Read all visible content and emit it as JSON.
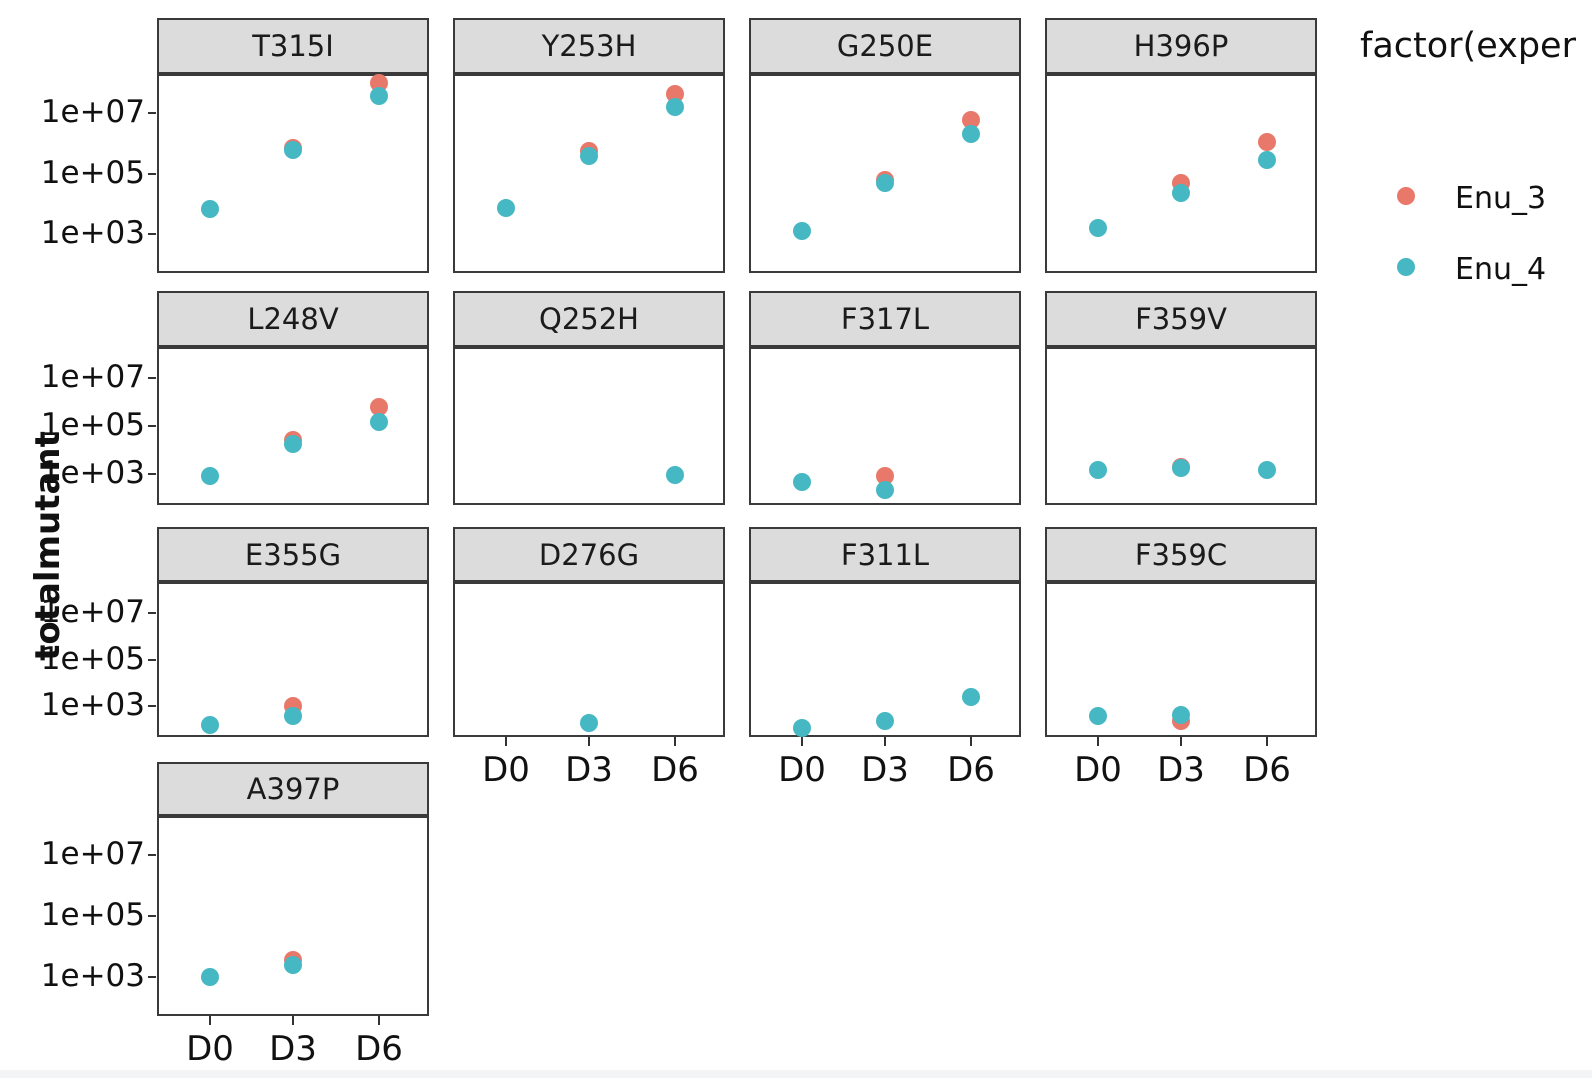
{
  "chart_data": {
    "type": "scatter",
    "x_categories": [
      "D0",
      "D3",
      "D6"
    ],
    "y_ticks": [
      {
        "value": 1000,
        "label": "1e+03"
      },
      {
        "value": 100000,
        "label": "1e+05"
      },
      {
        "value": 10000000,
        "label": "1e+07"
      }
    ],
    "y_scale": "log10",
    "y_domain_log10": [
      1.7,
      8.3
    ],
    "ylabel": "totalmutant",
    "grid": "off",
    "legend": {
      "title": "factor(exper",
      "position": "right",
      "items": [
        {
          "label": "Enu_3",
          "color": "#e87869"
        },
        {
          "label": "Enu_4",
          "color": "#46b8c3"
        }
      ]
    },
    "series_colors": {
      "Enu_3": "#e87869",
      "Enu_4": "#46b8c3"
    },
    "facets": [
      {
        "title": "T315I",
        "row": 1,
        "col": 1,
        "points": [
          {
            "x": "D3",
            "series": "Enu_3",
            "y": 710000
          },
          {
            "x": "D6",
            "series": "Enu_3",
            "y": 100000000
          },
          {
            "x": "D0",
            "series": "Enu_4",
            "y": 6800
          },
          {
            "x": "D3",
            "series": "Enu_4",
            "y": 590000
          },
          {
            "x": "D6",
            "series": "Enu_4",
            "y": 37000000
          }
        ]
      },
      {
        "title": "Y253H",
        "row": 1,
        "col": 2,
        "points": [
          {
            "x": "D3",
            "series": "Enu_3",
            "y": 540000
          },
          {
            "x": "D6",
            "series": "Enu_3",
            "y": 43000000
          },
          {
            "x": "D0",
            "series": "Enu_4",
            "y": 7400
          },
          {
            "x": "D3",
            "series": "Enu_4",
            "y": 370000
          },
          {
            "x": "D6",
            "series": "Enu_4",
            "y": 16000000
          }
        ]
      },
      {
        "title": "G250E",
        "row": 1,
        "col": 3,
        "points": [
          {
            "x": "D3",
            "series": "Enu_3",
            "y": 63000
          },
          {
            "x": "D6",
            "series": "Enu_3",
            "y": 5900000
          },
          {
            "x": "D0",
            "series": "Enu_4",
            "y": 1200
          },
          {
            "x": "D3",
            "series": "Enu_4",
            "y": 50000
          },
          {
            "x": "D6",
            "series": "Enu_4",
            "y": 2000000
          }
        ]
      },
      {
        "title": "H396P",
        "row": 1,
        "col": 4,
        "points": [
          {
            "x": "D3",
            "series": "Enu_3",
            "y": 47000
          },
          {
            "x": "D6",
            "series": "Enu_3",
            "y": 1100000
          },
          {
            "x": "D0",
            "series": "Enu_4",
            "y": 1600
          },
          {
            "x": "D3",
            "series": "Enu_4",
            "y": 23000
          },
          {
            "x": "D6",
            "series": "Enu_4",
            "y": 270000
          }
        ]
      },
      {
        "title": "L248V",
        "row": 2,
        "col": 1,
        "points": [
          {
            "x": "D3",
            "series": "Enu_3",
            "y": 25000
          },
          {
            "x": "D6",
            "series": "Enu_3",
            "y": 630000
          },
          {
            "x": "D0",
            "series": "Enu_4",
            "y": 850
          },
          {
            "x": "D3",
            "series": "Enu_4",
            "y": 17000
          },
          {
            "x": "D6",
            "series": "Enu_4",
            "y": 150000
          }
        ]
      },
      {
        "title": "Q252H",
        "row": 2,
        "col": 2,
        "points": [
          {
            "x": "D6",
            "series": "Enu_4",
            "y": 910
          }
        ]
      },
      {
        "title": "F317L",
        "row": 2,
        "col": 3,
        "points": [
          {
            "x": "D3",
            "series": "Enu_3",
            "y": 830
          },
          {
            "x": "D0",
            "series": "Enu_4",
            "y": 470
          },
          {
            "x": "D3",
            "series": "Enu_4",
            "y": 210
          }
        ]
      },
      {
        "title": "F359V",
        "row": 2,
        "col": 4,
        "points": [
          {
            "x": "D3",
            "series": "Enu_3",
            "y": 2000
          },
          {
            "x": "D0",
            "series": "Enu_4",
            "y": 1500
          },
          {
            "x": "D3",
            "series": "Enu_4",
            "y": 1700
          },
          {
            "x": "D6",
            "series": "Enu_4",
            "y": 1400
          }
        ]
      },
      {
        "title": "E355G",
        "row": 3,
        "col": 1,
        "points": [
          {
            "x": "D3",
            "series": "Enu_3",
            "y": 1000
          },
          {
            "x": "D0",
            "series": "Enu_4",
            "y": 160
          },
          {
            "x": "D3",
            "series": "Enu_4",
            "y": 400
          }
        ]
      },
      {
        "title": "D276G",
        "row": 3,
        "col": 2,
        "points": [
          {
            "x": "D3",
            "series": "Enu_4",
            "y": 200
          }
        ]
      },
      {
        "title": "F311L",
        "row": 3,
        "col": 3,
        "points": [
          {
            "x": "D0",
            "series": "Enu_4",
            "y": 125
          },
          {
            "x": "D3",
            "series": "Enu_4",
            "y": 250
          },
          {
            "x": "D6",
            "series": "Enu_4",
            "y": 2500
          }
        ]
      },
      {
        "title": "F359C",
        "row": 3,
        "col": 4,
        "points": [
          {
            "x": "D3",
            "series": "Enu_3",
            "y": 250
          },
          {
            "x": "D0",
            "series": "Enu_4",
            "y": 400
          },
          {
            "x": "D3",
            "series": "Enu_4",
            "y": 440
          }
        ]
      },
      {
        "title": "A397P",
        "row": 4,
        "col": 1,
        "points": [
          {
            "x": "D3",
            "series": "Enu_3",
            "y": 3500
          },
          {
            "x": "D0",
            "series": "Enu_4",
            "y": 1000
          },
          {
            "x": "D3",
            "series": "Enu_4",
            "y": 2400
          }
        ]
      }
    ]
  }
}
